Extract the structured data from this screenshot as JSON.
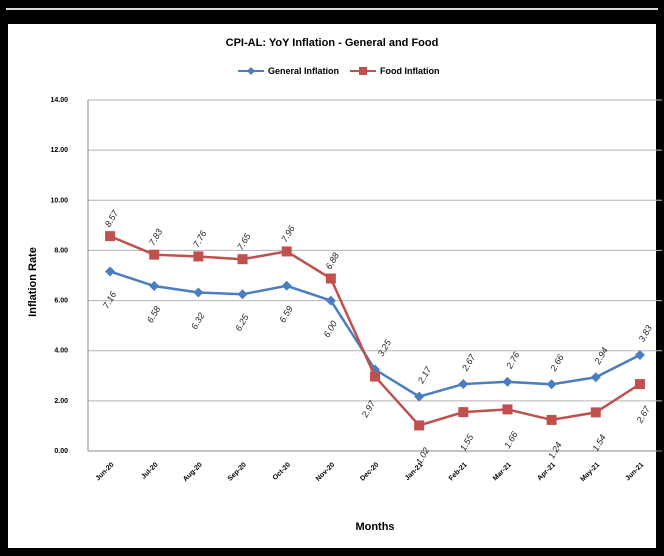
{
  "chart_data": {
    "type": "line",
    "title": "CPI-AL: YoY Inflation - General and Food",
    "xlabel": "Months",
    "ylabel": "Inflation Rate",
    "categories": [
      "Jun-20",
      "Jul-20",
      "Aug-20",
      "Sep-20",
      "Oct-20",
      "Nov-20",
      "Dec-20",
      "Jan-21",
      "Feb-21",
      "Mar-21",
      "Apr-21",
      "May-21",
      "Jun-21"
    ],
    "ylim": [
      0,
      14
    ],
    "yticks": [
      "0.00",
      "2.00",
      "4.00",
      "6.00",
      "8.00",
      "10.00",
      "12.00",
      "14.00"
    ],
    "grid": true,
    "legend_position": "top",
    "series": [
      {
        "name": "General Inflation",
        "color": "#4a7ebf",
        "marker": "diamond",
        "values": [
          7.16,
          6.58,
          6.32,
          6.25,
          6.59,
          6.0,
          3.25,
          2.17,
          2.67,
          2.76,
          2.66,
          2.94,
          3.83
        ],
        "labels": [
          "7.16",
          "6.58",
          "6.32",
          "6.25",
          "6.59",
          "6.00",
          "3.25",
          "2.17",
          "2.67",
          "2.76",
          "2.66",
          "2.94",
          "3.83"
        ]
      },
      {
        "name": "Food Inflation",
        "color": "#c0504d",
        "marker": "square",
        "values": [
          8.57,
          7.83,
          7.76,
          7.65,
          7.96,
          6.88,
          2.97,
          1.02,
          1.55,
          1.66,
          1.24,
          1.54,
          2.67
        ],
        "labels": [
          "8.57",
          "7.83",
          "7.76",
          "7.65",
          "7.96",
          "6.88",
          "2.97",
          "1.02",
          "1.55",
          "1.66",
          "1.24",
          "1.54",
          "2.67"
        ]
      }
    ]
  }
}
